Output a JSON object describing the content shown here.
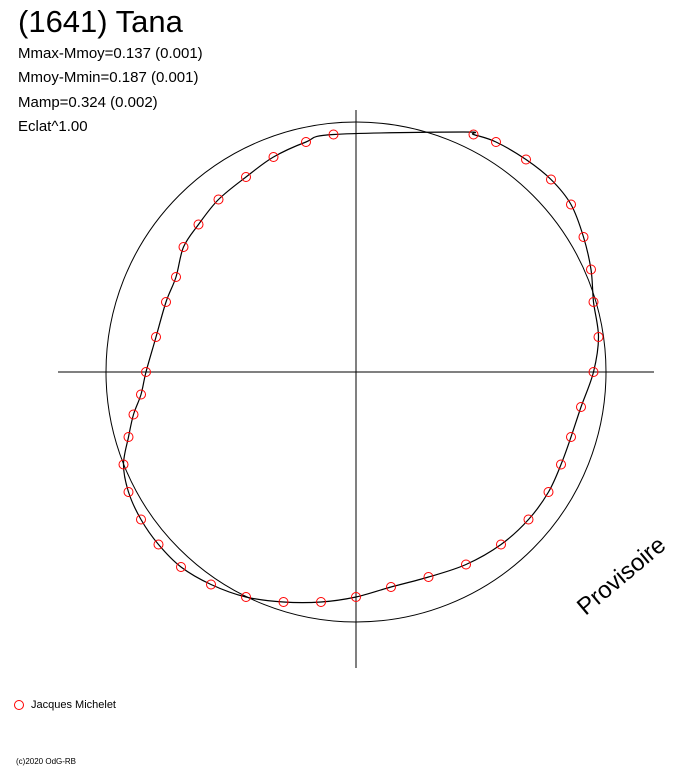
{
  "chart_data": {
    "type": "scatter",
    "title": "(1641) Tana",
    "stats": [
      "Mmax-Mmoy=0.137 (0.001)",
      "Mmoy-Mmin=0.187 (0.001)",
      "Mamp=0.324 (0.002)",
      "Eclat^1.00"
    ],
    "watermark": "Provisoire",
    "copyright": "(c)2020 OdG-RB",
    "marker_color": "#ff0000",
    "line_color": "#000000",
    "reference_circle": true,
    "series": [
      {
        "name": "Jacques Michelet",
        "marker": "open-circle",
        "points": [
          [
            -0.09,
            0.95
          ],
          [
            -0.2,
            0.92
          ],
          [
            -0.33,
            0.86
          ],
          [
            -0.44,
            0.78
          ],
          [
            -0.55,
            0.69
          ],
          [
            -0.63,
            0.59
          ],
          [
            -0.69,
            0.5
          ],
          [
            -0.72,
            0.38
          ],
          [
            -0.76,
            0.28
          ],
          [
            -0.8,
            0.14
          ],
          [
            -0.84,
            0.0
          ],
          [
            -0.86,
            -0.09
          ],
          [
            -0.89,
            -0.17
          ],
          [
            -0.91,
            -0.26
          ],
          [
            -0.93,
            -0.37
          ],
          [
            -0.91,
            -0.48
          ],
          [
            -0.86,
            -0.59
          ],
          [
            -0.79,
            -0.69
          ],
          [
            -0.7,
            -0.78
          ],
          [
            -0.58,
            -0.85
          ],
          [
            -0.44,
            -0.9
          ],
          [
            -0.29,
            -0.92
          ],
          [
            -0.14,
            -0.92
          ],
          [
            0.0,
            -0.9
          ],
          [
            0.14,
            -0.86
          ],
          [
            0.29,
            -0.82
          ],
          [
            0.44,
            -0.77
          ],
          [
            0.58,
            -0.69
          ],
          [
            0.69,
            -0.59
          ],
          [
            0.77,
            -0.48
          ],
          [
            0.82,
            -0.37
          ],
          [
            0.86,
            -0.26
          ],
          [
            0.9,
            -0.14
          ],
          [
            0.95,
            0.0
          ],
          [
            0.97,
            0.14
          ],
          [
            0.95,
            0.28
          ],
          [
            0.94,
            0.41
          ],
          [
            0.91,
            0.54
          ],
          [
            0.86,
            0.67
          ],
          [
            0.78,
            0.77
          ],
          [
            0.68,
            0.85
          ],
          [
            0.56,
            0.92
          ],
          [
            0.47,
            0.95
          ],
          [
            0.43,
            0.96
          ]
        ]
      }
    ]
  },
  "legend": {
    "label": "Jacques Michelet"
  }
}
